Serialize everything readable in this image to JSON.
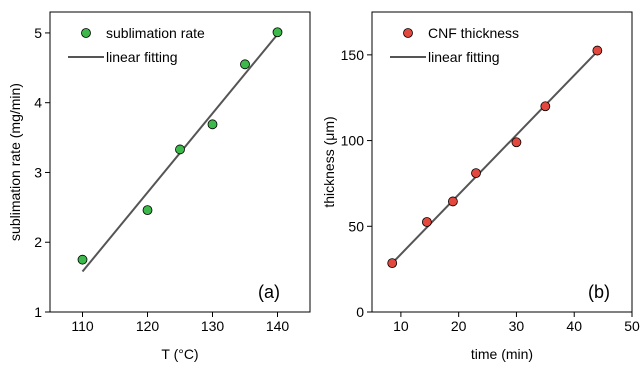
{
  "chart_data": [
    {
      "type": "scatter",
      "panel_label": "(a)",
      "xlabel": "T (°C)",
      "ylabel": "sublimation rate (mg/min)",
      "xlim": [
        105,
        145
      ],
      "ylim": [
        1,
        5.3
      ],
      "xticks": [
        110,
        120,
        130,
        140
      ],
      "yticks": [
        1,
        2,
        3,
        4,
        5
      ],
      "legend_position": "top-left",
      "series": [
        {
          "name": "sublimation rate",
          "kind": "scatter",
          "color": "#3db84a",
          "x": [
            110,
            120,
            125,
            130,
            135,
            140
          ],
          "y": [
            1.75,
            2.46,
            3.33,
            3.69,
            4.55,
            5.01
          ]
        },
        {
          "name": "linear fitting",
          "kind": "line",
          "color": "#555555",
          "x": [
            110,
            140
          ],
          "y": [
            1.58,
            4.98
          ]
        }
      ]
    },
    {
      "type": "scatter",
      "panel_label": "(b)",
      "xlabel": "time (min)",
      "ylabel": "thickness (μm)",
      "xlim": [
        5,
        50
      ],
      "ylim": [
        0,
        175
      ],
      "xticks": [
        10,
        20,
        30,
        40,
        50
      ],
      "yticks": [
        0,
        50,
        100,
        150
      ],
      "legend_position": "top-left",
      "series": [
        {
          "name": "CNF thickness",
          "kind": "scatter",
          "color": "#e2483d",
          "x": [
            8.5,
            14.5,
            19,
            23,
            30,
            35,
            44
          ],
          "y": [
            28.5,
            52.5,
            64.5,
            81,
            99,
            120,
            152.5
          ]
        },
        {
          "name": "linear fitting",
          "kind": "line",
          "color": "#555555",
          "x": [
            8.5,
            44
          ],
          "y": [
            28.5,
            152
          ]
        }
      ]
    }
  ]
}
